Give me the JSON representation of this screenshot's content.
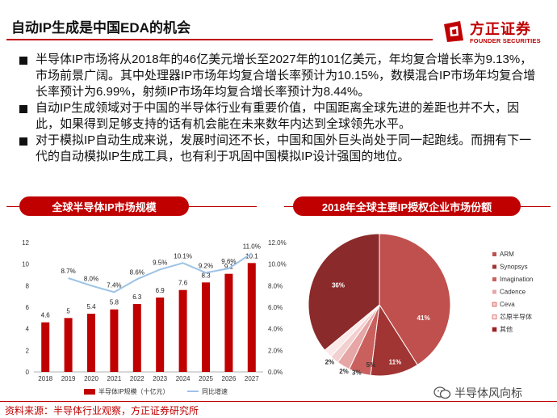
{
  "header": {
    "title": "自动IP生成是中国EDA的机会",
    "logo_cn": "方正证券",
    "logo_en": "FOUNDER SECURITIES",
    "brand_color": "#c00000"
  },
  "bullets": [
    "半导体IP市场将从2018年的46亿美元增长至2027年的101亿美元，年均复合增长率为9.13%，市场前景广阔。其中处理器IP市场年均复合增长率预计为10.15%，数模混合IP市场年均复合增长率预计为6.99%，射频IP市场年均复合增长率预计为8.44%。",
    "自动IP生成领域对于中国的半导体行业有重要价值，中国距离全球先进的差距也并不大，因此，如果得到足够支持的话有机会能在未来数年内达到全球领先水平。",
    "对于模拟IP自动生成来说，发展时间还不长，中国和国外巨头尚处于同一起跑线。而拥有下一代的自动模拟IP生成工具，也有利于巩固中国模拟IP设计强国的地位。"
  ],
  "sections": {
    "left_title": "全球半导体IP市场规模",
    "right_title": "2018年全球主要IP授权企业市场份额"
  },
  "chart_data": [
    {
      "type": "bar",
      "categories": [
        "2018",
        "2019",
        "2020",
        "2021",
        "2022",
        "2023",
        "2024",
        "2025",
        "2026",
        "2027"
      ],
      "series": [
        {
          "name": "半导体IP规模（十亿元）",
          "type": "bar",
          "color": "#c00000",
          "values": [
            4.6,
            5,
            5.4,
            5.8,
            6.3,
            6.9,
            7.6,
            8.3,
            9.1,
            10.1
          ],
          "labels": [
            "4.6",
            "5",
            "5.4",
            "5.8",
            "6.3",
            "6.9",
            "7.6",
            "8.3",
            "9.1",
            "10.1"
          ]
        },
        {
          "name": "同比增速",
          "type": "line",
          "color": "#9dc3e6",
          "axis": "right",
          "values": [
            null,
            8.7,
            8.0,
            7.4,
            8.6,
            9.5,
            10.1,
            9.2,
            9.6,
            11.0
          ],
          "labels": [
            "",
            "8.7%",
            "8.0%",
            "7.4%",
            "8.6%",
            "9.5%",
            "10.1%",
            "9.2%",
            "9.6%",
            "11.0%"
          ]
        }
      ],
      "y_left": {
        "min": 0,
        "max": 12,
        "ticks": [
          "0",
          "2",
          "4",
          "6",
          "8",
          "10",
          "12"
        ]
      },
      "y_right": {
        "min": 0,
        "max": 12,
        "ticks": [
          "0.0%",
          "2.0%",
          "4.0%",
          "6.0%",
          "8.0%",
          "10.0%",
          "12.0%"
        ]
      },
      "legend": [
        "半导体IP规模（十亿元）",
        "同比增速"
      ]
    },
    {
      "type": "pie",
      "labels": [
        "ARM",
        "Synopsys",
        "Imagination",
        "Cadence",
        "Ceva",
        "芯原半导体",
        "其他"
      ],
      "values": [
        41,
        11,
        5,
        3,
        2,
        2,
        36
      ],
      "value_labels": [
        "41%",
        "11%",
        "5%",
        "3%",
        "2%",
        "2%",
        "36%"
      ],
      "colors": [
        "#c0504d",
        "#a03533",
        "#c9605e",
        "#e6a6a5",
        "#f2d0cf",
        "#fbe9e9",
        "#8b2a2a"
      ],
      "legend_placement": "right"
    }
  ],
  "footer": {
    "source": "资料来源：半导体行业观察，方正证券研究所",
    "watermark": "半导体风向标"
  }
}
